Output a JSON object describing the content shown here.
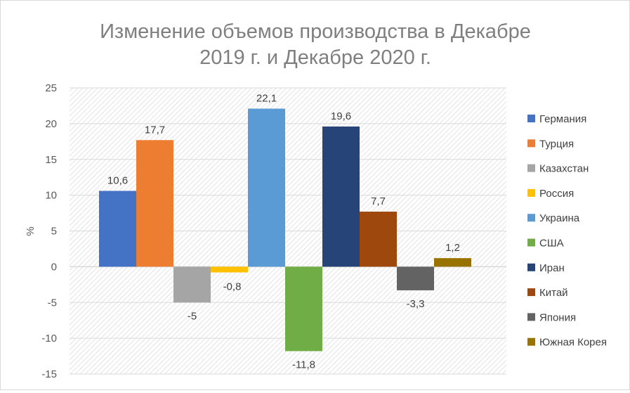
{
  "chart_data": {
    "type": "bar",
    "title_lines": [
      "Изменение объемов производства в Декабре",
      "2019 г. и Декабре 2020 г."
    ],
    "xlabel": "",
    "ylabel": "%",
    "ylim": [
      -15,
      25
    ],
    "yticks": [
      25,
      20,
      15,
      10,
      5,
      0,
      -5,
      -10,
      -15
    ],
    "grid": true,
    "legend_position": "right",
    "series": [
      {
        "name": "Германия",
        "value": 10.6,
        "label": "10,6",
        "color": "#4472C4"
      },
      {
        "name": "Турция",
        "value": 17.7,
        "label": "17,7",
        "color": "#ED7D31"
      },
      {
        "name": "Казахстан",
        "value": -5,
        "label": "-5",
        "color": "#A5A5A5"
      },
      {
        "name": "Россия",
        "value": -0.8,
        "label": "-0,8",
        "color": "#FFC000"
      },
      {
        "name": "Украина",
        "value": 22.1,
        "label": "22,1",
        "color": "#5B9BD5"
      },
      {
        "name": "США",
        "value": -11.8,
        "label": "-11,8",
        "color": "#70AD47"
      },
      {
        "name": "Иран",
        "value": 19.6,
        "label": "19,6",
        "color": "#264478"
      },
      {
        "name": "Китай",
        "value": 7.7,
        "label": "7,7",
        "color": "#9E480E"
      },
      {
        "name": "Япония",
        "value": -3.3,
        "label": "-3,3",
        "color": "#636363"
      },
      {
        "name": "Южная Корея",
        "value": 1.2,
        "label": "1,2",
        "color": "#997300"
      }
    ]
  }
}
